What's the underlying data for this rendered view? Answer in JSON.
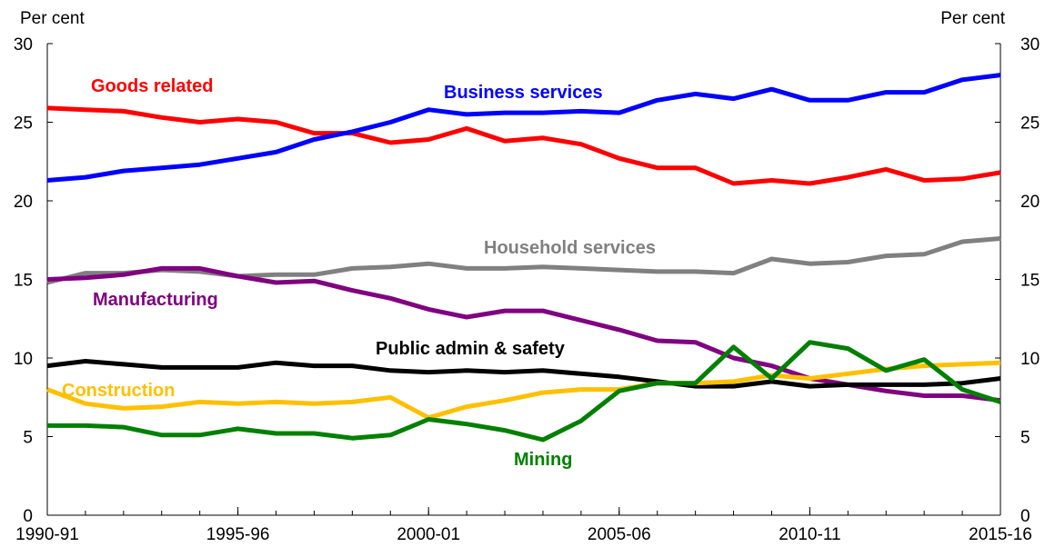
{
  "chart_data": {
    "type": "line",
    "title": "",
    "xlabel": "",
    "ylabel_left": "Per cent",
    "ylabel_right": "Per cent",
    "ylim": [
      0,
      30
    ],
    "yticks": [
      0,
      5,
      10,
      15,
      20,
      25,
      30
    ],
    "x": [
      "1990-91",
      "1991-92",
      "1992-93",
      "1993-94",
      "1994-95",
      "1995-96",
      "1996-97",
      "1997-98",
      "1998-99",
      "1999-00",
      "2000-01",
      "2001-02",
      "2002-03",
      "2003-04",
      "2004-05",
      "2005-06",
      "2006-07",
      "2007-08",
      "2008-09",
      "2009-10",
      "2010-11",
      "2011-12",
      "2012-13",
      "2013-14",
      "2014-15",
      "2015-16"
    ],
    "xtick_labels": [
      "1990-91",
      "1995-96",
      "2000-01",
      "2005-06",
      "2010-11",
      "2015-16"
    ],
    "grid": false,
    "legend": "inline labels",
    "series": [
      {
        "name": "Goods related",
        "color": "#ff0000",
        "values": [
          25.9,
          25.8,
          25.7,
          25.3,
          25.0,
          25.2,
          25.0,
          24.3,
          24.3,
          23.7,
          23.9,
          24.6,
          23.8,
          24.0,
          23.6,
          22.7,
          22.1,
          22.1,
          21.1,
          21.3,
          21.1,
          21.5,
          22.0,
          21.3,
          21.4,
          21.8
        ]
      },
      {
        "name": "Business services",
        "color": "#0000ff",
        "values": [
          21.3,
          21.5,
          21.9,
          22.1,
          22.3,
          22.7,
          23.1,
          23.9,
          24.4,
          25.0,
          25.8,
          25.5,
          25.6,
          25.6,
          25.7,
          25.6,
          26.4,
          26.8,
          26.5,
          27.1,
          26.4,
          26.4,
          26.9,
          26.9,
          27.7,
          28.0
        ]
      },
      {
        "name": "Household services",
        "color": "#808080",
        "values": [
          14.8,
          15.4,
          15.4,
          15.6,
          15.5,
          15.2,
          15.3,
          15.3,
          15.7,
          15.8,
          16.0,
          15.7,
          15.7,
          15.8,
          15.7,
          15.6,
          15.5,
          15.5,
          15.4,
          16.3,
          16.0,
          16.1,
          16.5,
          16.6,
          17.4,
          17.6
        ]
      },
      {
        "name": "Manufacturing",
        "color": "#800080",
        "values": [
          15.0,
          15.1,
          15.3,
          15.7,
          15.7,
          15.2,
          14.8,
          14.9,
          14.3,
          13.8,
          13.1,
          12.6,
          13.0,
          13.0,
          12.4,
          11.8,
          11.1,
          11.0,
          10.0,
          9.5,
          8.7,
          8.3,
          7.9,
          7.6,
          7.6,
          7.3
        ]
      },
      {
        "name": "Public admin & safety",
        "color": "#000000",
        "values": [
          9.5,
          9.8,
          9.6,
          9.4,
          9.4,
          9.4,
          9.7,
          9.5,
          9.5,
          9.2,
          9.1,
          9.2,
          9.1,
          9.2,
          9.0,
          8.8,
          8.5,
          8.2,
          8.2,
          8.5,
          8.2,
          8.3,
          8.3,
          8.3,
          8.4,
          8.7
        ]
      },
      {
        "name": "Construction",
        "color": "#ffc000",
        "values": [
          8.0,
          7.1,
          6.8,
          6.9,
          7.2,
          7.1,
          7.2,
          7.1,
          7.2,
          7.5,
          6.2,
          6.9,
          7.3,
          7.8,
          8.0,
          8.0,
          8.4,
          8.4,
          8.5,
          8.9,
          8.7,
          9.0,
          9.3,
          9.5,
          9.6,
          9.7
        ]
      },
      {
        "name": "Mining",
        "color": "#008000",
        "values": [
          5.7,
          5.7,
          5.6,
          5.1,
          5.1,
          5.5,
          5.2,
          5.2,
          4.9,
          5.1,
          6.1,
          5.8,
          5.4,
          4.8,
          6.0,
          7.9,
          8.4,
          8.4,
          10.7,
          8.7,
          11.0,
          10.6,
          9.2,
          9.9,
          8.0,
          7.2
        ]
      }
    ]
  }
}
